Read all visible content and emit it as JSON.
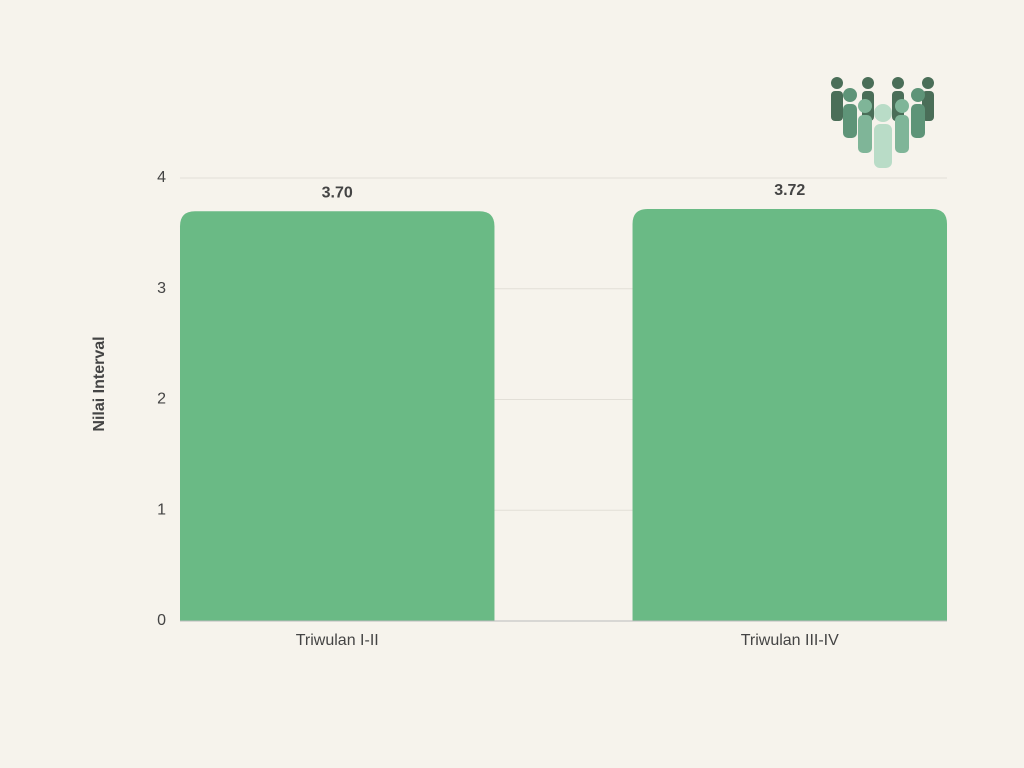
{
  "chart_data": {
    "type": "bar",
    "y_label": "Nilai Interval",
    "categories": [
      "Triwulan I-II",
      "Triwulan III-IV"
    ],
    "values": [
      3.7,
      3.72
    ],
    "value_labels": [
      "3.70",
      "3.72"
    ],
    "color": "#6aba85",
    "ylim": [
      0,
      4
    ],
    "yticks": [
      0,
      1,
      2,
      3,
      4
    ],
    "grid": true
  }
}
